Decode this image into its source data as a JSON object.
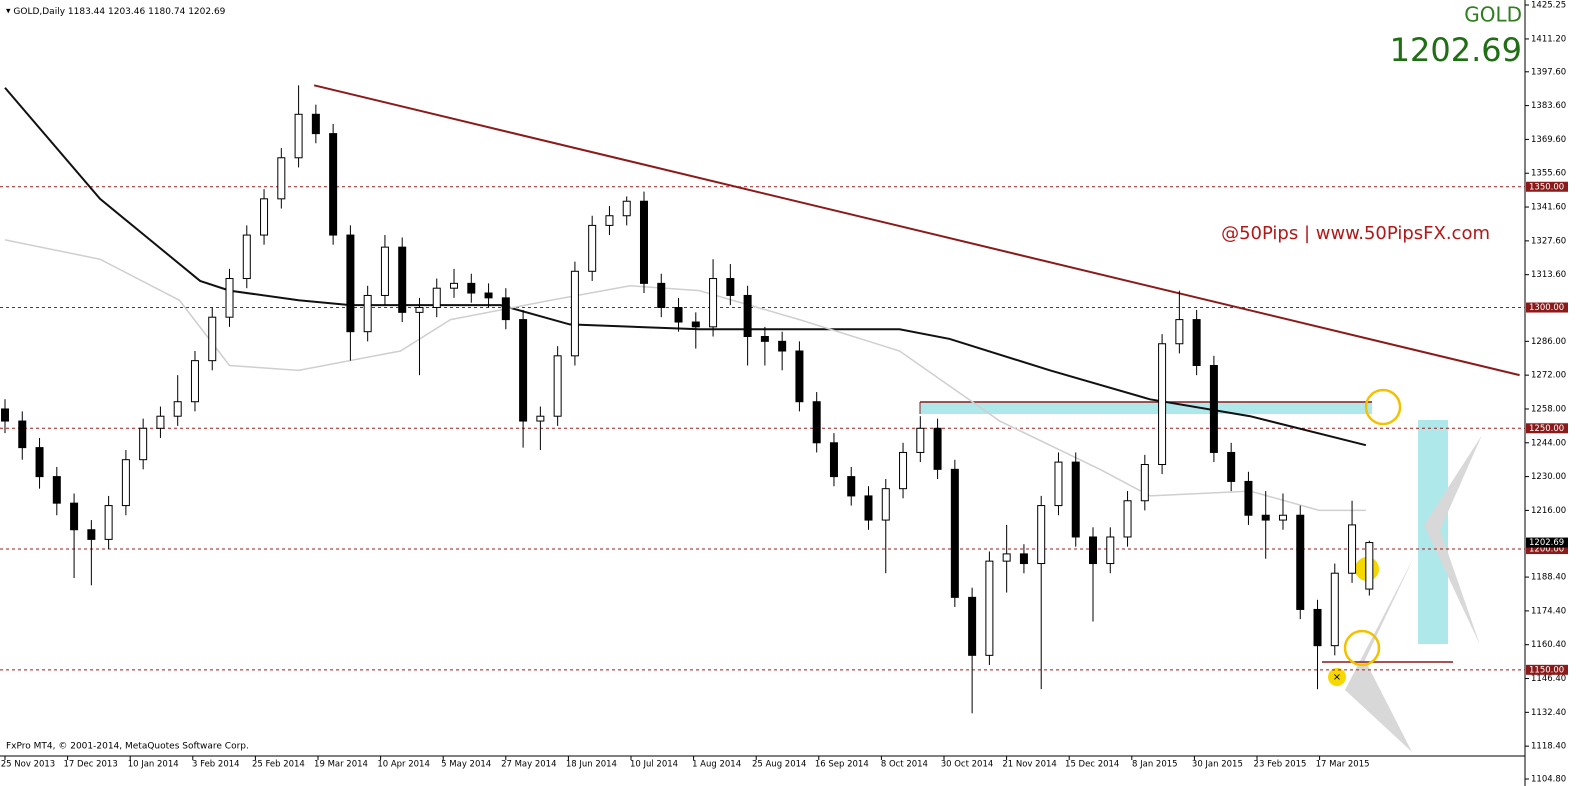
{
  "chart_data": {
    "type": "candlestick",
    "header": "GOLD,Daily",
    "symbol": "GOLD",
    "watermark": "@50Pips | www.50PipsFX.com",
    "copyright": "FxPro MT4, © 2001-2014, MetaQuotes Software Corp.",
    "categories": [
      "25 Nov 2013",
      "17 Dec 2013",
      "10 Jan 2014",
      "3 Feb 2014",
      "25 Feb 2014",
      "19 Mar 2014",
      "10 Apr 2014",
      "5 May 2014",
      "27 May 2014",
      "18 Jun 2014",
      "10 Jul 2014",
      "1 Aug 2014",
      "25 Aug 2014",
      "16 Sep 2014",
      "8 Oct 2014",
      "30 Oct 2014",
      "21 Nov 2014",
      "15 Dec 2014",
      "8 Jan 2015",
      "30 Jan 2015",
      "23 Feb 2015",
      "17 Mar 2015"
    ],
    "candles": [
      [
        1258,
        1262,
        1248,
        1253
      ],
      [
        1253,
        1257,
        1237,
        1242
      ],
      [
        1242,
        1246,
        1225,
        1230
      ],
      [
        1230,
        1234,
        1214,
        1219
      ],
      [
        1219,
        1223,
        1188,
        1208
      ],
      [
        1208,
        1212,
        1185,
        1204
      ],
      [
        1204,
        1222,
        1200,
        1218
      ],
      [
        1218,
        1241,
        1214,
        1237
      ],
      [
        1237,
        1254,
        1233,
        1250
      ],
      [
        1250,
        1259,
        1246,
        1255
      ],
      [
        1255,
        1272,
        1251,
        1261
      ],
      [
        1261,
        1282,
        1257,
        1278
      ],
      [
        1278,
        1300,
        1274,
        1296
      ],
      [
        1296,
        1316,
        1292,
        1312
      ],
      [
        1312,
        1334,
        1308,
        1330
      ],
      [
        1330,
        1349,
        1326,
        1345
      ],
      [
        1345,
        1366,
        1341,
        1362
      ],
      [
        1362,
        1392,
        1358,
        1380
      ],
      [
        1380,
        1384,
        1368,
        1372
      ],
      [
        1372,
        1376,
        1326,
        1330
      ],
      [
        1330,
        1334,
        1278,
        1290
      ],
      [
        1290,
        1309,
        1286,
        1305
      ],
      [
        1305,
        1330,
        1301,
        1325
      ],
      [
        1325,
        1329,
        1294,
        1298
      ],
      [
        1298,
        1304,
        1272,
        1300
      ],
      [
        1300,
        1312,
        1296,
        1308
      ],
      [
        1308,
        1316,
        1304,
        1310
      ],
      [
        1310,
        1314,
        1302,
        1306
      ],
      [
        1306,
        1310,
        1300,
        1304
      ],
      [
        1304,
        1308,
        1291,
        1295
      ],
      [
        1295,
        1299,
        1242,
        1253
      ],
      [
        1253,
        1259,
        1241,
        1255
      ],
      [
        1255,
        1284,
        1251,
        1280
      ],
      [
        1280,
        1319,
        1276,
        1315
      ],
      [
        1315,
        1338,
        1311,
        1334
      ],
      [
        1334,
        1342,
        1330,
        1338
      ],
      [
        1338,
        1346,
        1334,
        1344
      ],
      [
        1344,
        1348,
        1306,
        1310
      ],
      [
        1310,
        1314,
        1296,
        1300
      ],
      [
        1300,
        1304,
        1290,
        1294
      ],
      [
        1294,
        1298,
        1283,
        1292
      ],
      [
        1292,
        1320,
        1288,
        1312
      ],
      [
        1312,
        1318,
        1301,
        1305
      ],
      [
        1305,
        1309,
        1276,
        1288
      ],
      [
        1288,
        1292,
        1276,
        1286
      ],
      [
        1286,
        1290,
        1274,
        1282
      ],
      [
        1282,
        1286,
        1257,
        1261
      ],
      [
        1261,
        1265,
        1240,
        1244
      ],
      [
        1244,
        1248,
        1226,
        1230
      ],
      [
        1230,
        1234,
        1218,
        1222
      ],
      [
        1222,
        1226,
        1208,
        1212
      ],
      [
        1212,
        1229,
        1190,
        1225
      ],
      [
        1225,
        1244,
        1221,
        1240
      ],
      [
        1240,
        1255,
        1236,
        1250
      ],
      [
        1250,
        1254,
        1229,
        1233
      ],
      [
        1233,
        1237,
        1176,
        1180
      ],
      [
        1180,
        1184,
        1132,
        1156
      ],
      [
        1156,
        1199,
        1152,
        1195
      ],
      [
        1195,
        1210,
        1182,
        1198
      ],
      [
        1198,
        1202,
        1190,
        1194
      ],
      [
        1194,
        1222,
        1142,
        1218
      ],
      [
        1218,
        1240,
        1214,
        1236
      ],
      [
        1236,
        1240,
        1201,
        1205
      ],
      [
        1205,
        1209,
        1170,
        1194
      ],
      [
        1194,
        1209,
        1190,
        1205
      ],
      [
        1205,
        1224,
        1201,
        1220
      ],
      [
        1220,
        1239,
        1216,
        1235
      ],
      [
        1235,
        1289,
        1231,
        1285
      ],
      [
        1285,
        1307,
        1281,
        1295
      ],
      [
        1295,
        1299,
        1272,
        1276
      ],
      [
        1276,
        1280,
        1236,
        1240
      ],
      [
        1240,
        1244,
        1224,
        1228
      ],
      [
        1228,
        1232,
        1210,
        1214
      ],
      [
        1214,
        1224,
        1196,
        1212
      ],
      [
        1212,
        1223,
        1208,
        1214
      ],
      [
        1214,
        1218,
        1171,
        1175
      ],
      [
        1175,
        1179,
        1142,
        1160
      ],
      [
        1160,
        1194,
        1156,
        1190
      ],
      [
        1190,
        1220,
        1186,
        1210
      ],
      [
        1183.44,
        1203.46,
        1180.74,
        1202.69
      ]
    ],
    "series": [
      {
        "color": "#111111",
        "x": [
          0,
          5.5,
          8.4,
          11.3,
          13,
          17,
          20,
          28.7,
          32.7,
          40.2,
          51.8,
          54.7,
          60.5,
          66.3,
          72.1,
          78.8
        ],
        "values": [
          1391,
          1345,
          1328,
          1311,
          1307,
          1303,
          1301,
          1301,
          1293,
          1291,
          1291,
          1287,
          1274,
          1262,
          1255,
          1243
        ]
      },
      {
        "color": "#cfcfcf",
        "x": [
          0,
          5.5,
          10.1,
          13,
          17,
          22.9,
          25.8,
          31.6,
          36.2,
          40.2,
          46.0,
          51.8,
          57.6,
          63.4,
          66.3,
          72.1,
          76.1,
          78.8
        ],
        "values": [
          1328,
          1320,
          1303,
          1276,
          1274,
          1282,
          1295,
          1303,
          1309,
          1307,
          1295,
          1282,
          1253,
          1233,
          1222,
          1224,
          1216,
          1216
        ]
      }
    ],
    "trendline": {
      "color": "#8b1a1a",
      "x": [
        17.9,
        87.7
      ],
      "values": [
        1392,
        1272
      ]
    },
    "levels": [
      {
        "value": 1350,
        "label": "1350.00"
      },
      {
        "value": 1300,
        "label": "1300.00"
      },
      {
        "value": 1250,
        "label": "1250.00"
      },
      {
        "value": 1200,
        "label": "1200.00"
      },
      {
        "value": 1150,
        "label": "1150.00"
      }
    ],
    "ylim": [
      1104.8,
      1425.25
    ],
    "yticks": [
      {
        "value": 1425.25,
        "label": "1425.25"
      },
      {
        "value": 1411.2,
        "label": "1411.20"
      },
      {
        "value": 1397.6,
        "label": "1397.60"
      },
      {
        "value": 1383.6,
        "label": "1383.60"
      },
      {
        "value": 1369.6,
        "label": "1369.60"
      },
      {
        "value": 1355.6,
        "label": "1355.60"
      },
      {
        "value": 1341.6,
        "label": "1341.60"
      },
      {
        "value": 1327.6,
        "label": "1327.60"
      },
      {
        "value": 1313.6,
        "label": "1313.60"
      },
      {
        "value": 1286,
        "label": "1286.00"
      },
      {
        "value": 1272,
        "label": "1272.00"
      },
      {
        "value": 1258,
        "label": "1258.00"
      },
      {
        "value": 1244,
        "label": "1244.00"
      },
      {
        "value": 1230,
        "label": "1230.00"
      },
      {
        "value": 1216,
        "label": "1216.00"
      },
      {
        "value": 1188.4,
        "label": "1188.40"
      },
      {
        "value": 1174.4,
        "label": "1174.40"
      },
      {
        "value": 1160.4,
        "label": "1160.40"
      },
      {
        "value": 1146.4,
        "label": "1146.40"
      },
      {
        "value": 1132.4,
        "label": "1132.40"
      },
      {
        "value": 1118.4,
        "label": "1118.40"
      },
      {
        "value": 1104.8,
        "label": "1104.80"
      }
    ]
  }
}
